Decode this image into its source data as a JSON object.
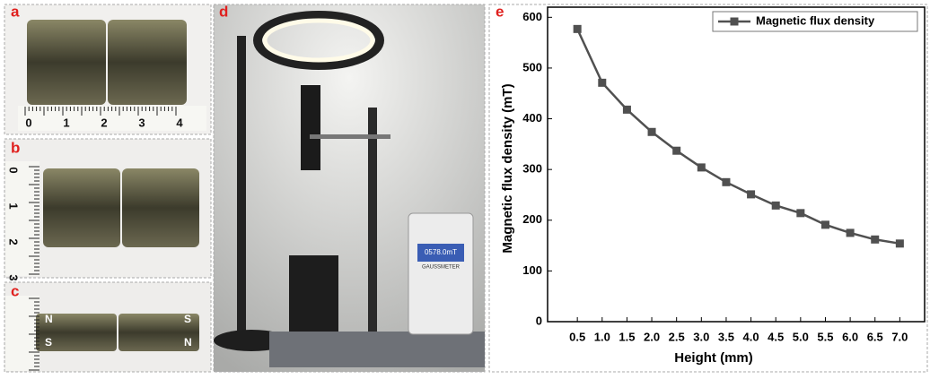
{
  "panels": {
    "a": {
      "label": "a",
      "ruler": [
        "0",
        "1",
        "2",
        "3",
        "4"
      ]
    },
    "b": {
      "label": "b",
      "ruler": [
        "0",
        "1",
        "2",
        "3"
      ]
    },
    "c": {
      "label": "c",
      "poles": [
        "N",
        "S",
        "S",
        "N"
      ]
    },
    "d": {
      "label": "d",
      "display": "0578.0mT",
      "device": "GAUSSMETER"
    }
  },
  "chart_data": {
    "type": "line",
    "panel_label": "e",
    "xlabel": "Height (mm)",
    "ylabel": "Magnetic flux density (mT)",
    "x": [
      0.5,
      1.0,
      1.5,
      2.0,
      2.5,
      3.0,
      3.5,
      4.0,
      4.5,
      5.0,
      5.5,
      6.0,
      6.5,
      7.0
    ],
    "series": [
      {
        "name": "Magnetic flux density",
        "color": "#505050",
        "values": [
          577,
          471,
          418,
          374,
          337,
          304,
          275,
          251,
          229,
          214,
          191,
          175,
          162,
          154
        ]
      }
    ],
    "xlim": [
      -0.1,
      7.5
    ],
    "ylim": [
      0,
      620
    ],
    "xticks": [
      0.5,
      {
        "value": 1,
        "label": "1.0"
      },
      1.5,
      {
        "value": 2,
        "label": "2.0"
      },
      2.5,
      {
        "value": 3,
        "label": "3.0"
      },
      3.5,
      {
        "value": 4,
        "label": "4.0"
      },
      4.5,
      {
        "value": 5,
        "label": "5.0"
      },
      5.5,
      {
        "value": 6,
        "label": "6.0"
      },
      6.5,
      {
        "value": 7,
        "label": "7.0"
      }
    ],
    "yticks": [
      0,
      100,
      200,
      300,
      400,
      500,
      600
    ],
    "legend": "upper right",
    "marker": "square"
  }
}
